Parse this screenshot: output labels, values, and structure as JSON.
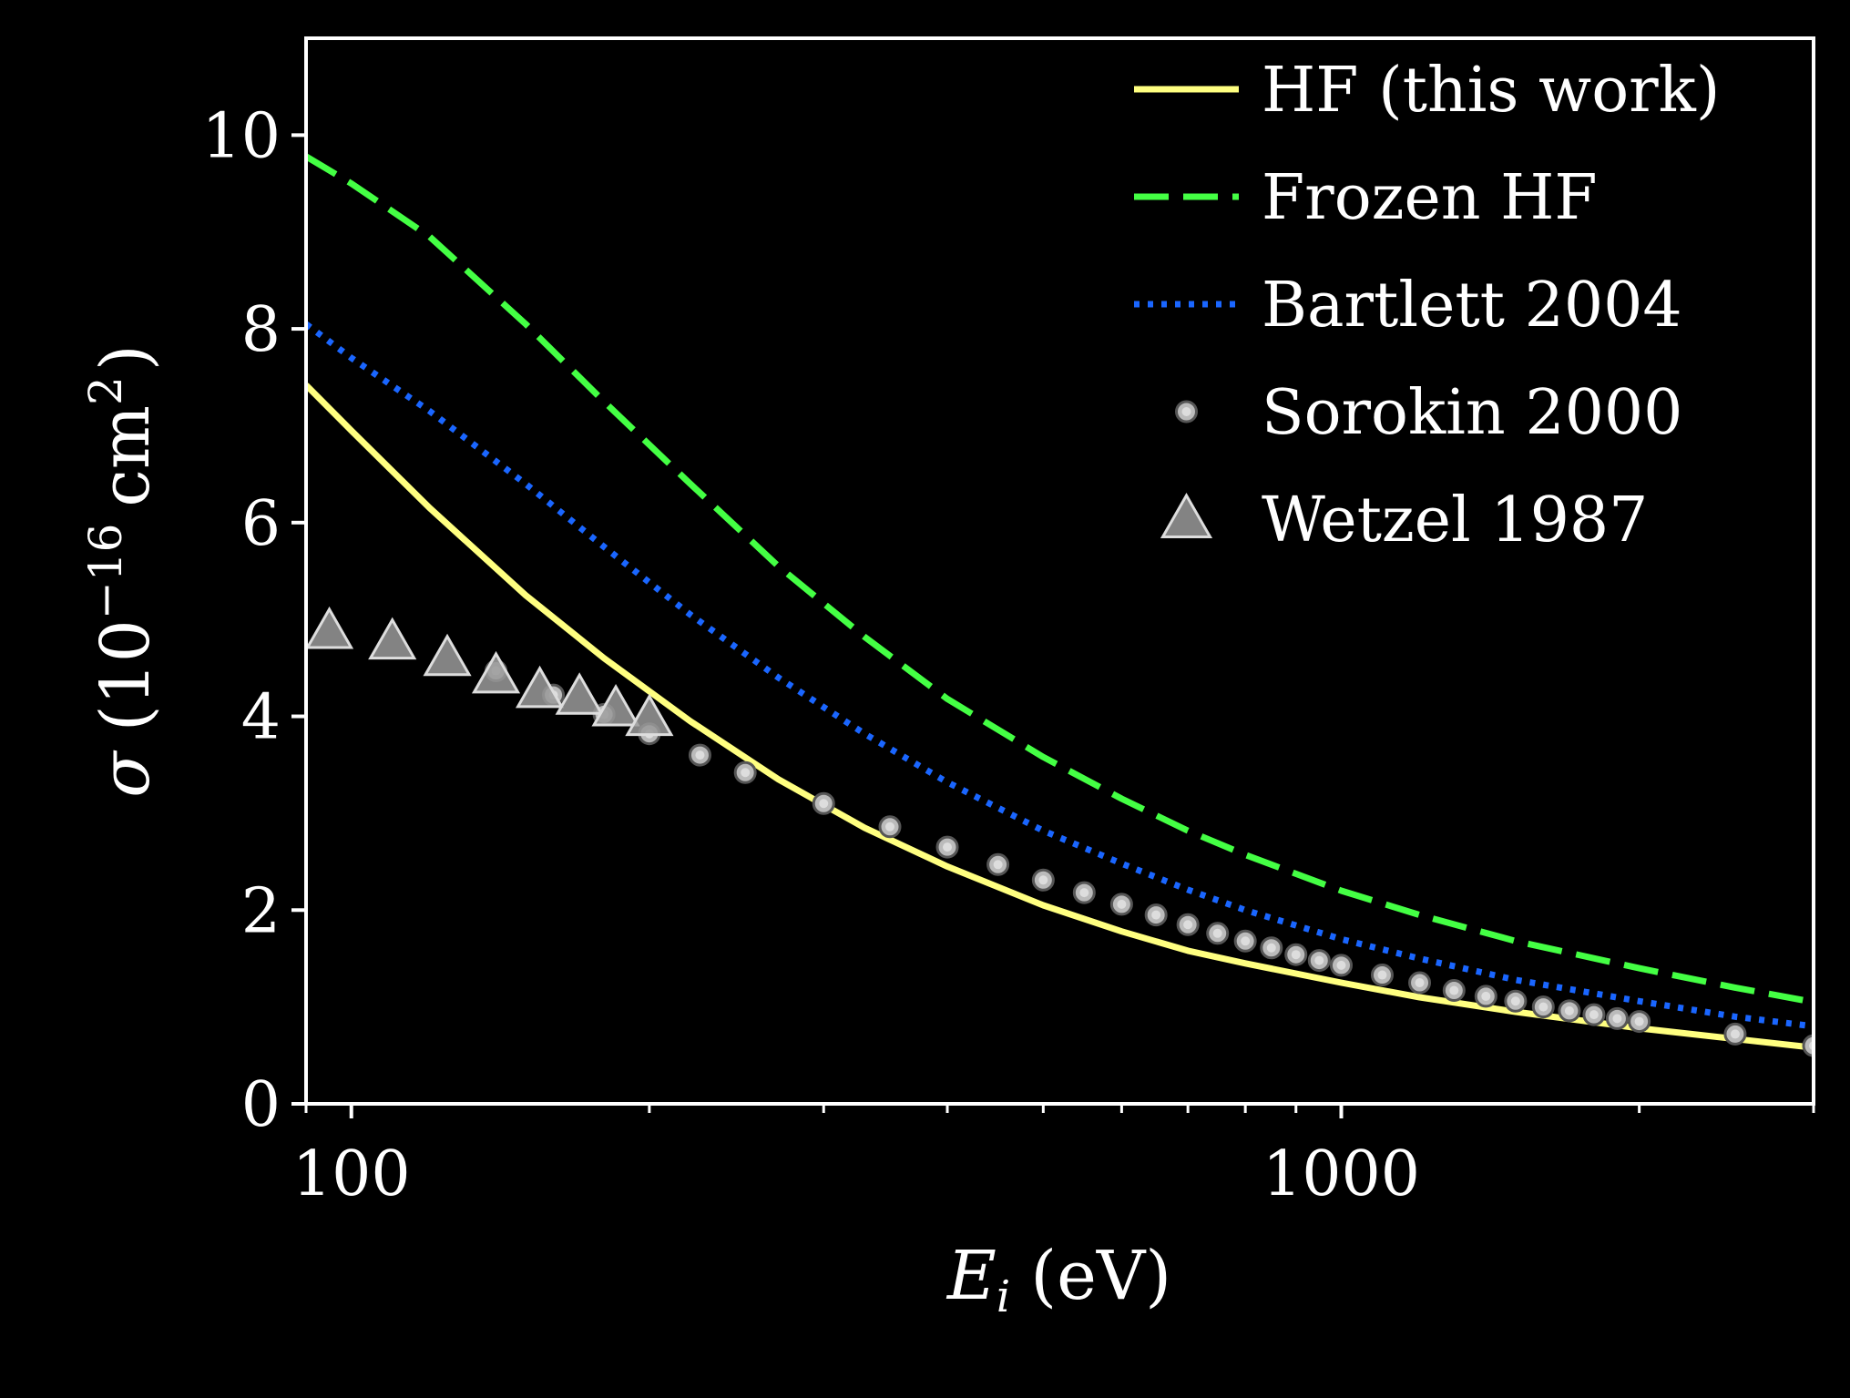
{
  "chart_data": {
    "type": "line",
    "xlabel": "E_i (eV)",
    "xlabel_main": "E",
    "xlabel_sub": "i",
    "xlabel_unit": "(eV)",
    "ylabel": "σ (10^−16 cm^2)",
    "ylabel_symbol": "σ",
    "ylabel_base": "(10",
    "ylabel_exp": "−16",
    "ylabel_unit": "cm",
    "ylabel_unit_exp": "2",
    "ylabel_close": ")",
    "x_scale": "log",
    "xlim": [
      90,
      3000
    ],
    "ylim": [
      0,
      11
    ],
    "x_tick_labels": [
      {
        "value": 100,
        "label": "100"
      },
      {
        "value": 1000,
        "label": "1000"
      }
    ],
    "y_tick_labels": [
      {
        "value": 0,
        "label": "0"
      },
      {
        "value": 2,
        "label": "2"
      },
      {
        "value": 4,
        "label": "4"
      },
      {
        "value": 6,
        "label": "6"
      },
      {
        "value": 8,
        "label": "8"
      },
      {
        "value": 10,
        "label": "10"
      }
    ],
    "legend_position": "top-right",
    "grid": false,
    "series": [
      {
        "name": "HF (this work)",
        "kind": "line",
        "style": "solid",
        "color": "#ffff80",
        "x": [
          90,
          100,
          120,
          150,
          180,
          220,
          270,
          330,
          400,
          500,
          600,
          700,
          800,
          1000,
          1200,
          1500,
          2000,
          2500,
          3000
        ],
        "y": [
          7.42,
          6.95,
          6.15,
          5.25,
          4.6,
          3.95,
          3.35,
          2.85,
          2.45,
          2.05,
          1.78,
          1.58,
          1.45,
          1.25,
          1.1,
          0.95,
          0.78,
          0.67,
          0.58
        ]
      },
      {
        "name": "Frozen HF",
        "kind": "line",
        "style": "dashed",
        "color": "#44ff44",
        "x": [
          90,
          100,
          120,
          150,
          180,
          220,
          270,
          330,
          400,
          500,
          600,
          700,
          800,
          1000,
          1200,
          1500,
          2000,
          2500,
          3000
        ],
        "y": [
          9.78,
          9.5,
          8.95,
          8.05,
          7.25,
          6.4,
          5.55,
          4.82,
          4.18,
          3.58,
          3.15,
          2.82,
          2.57,
          2.2,
          1.95,
          1.68,
          1.4,
          1.2,
          1.05
        ]
      },
      {
        "name": "Bartlett 2004",
        "kind": "line",
        "style": "dotted",
        "color": "#1a66ff",
        "x": [
          90,
          100,
          120,
          150,
          180,
          220,
          270,
          330,
          400,
          500,
          600,
          700,
          800,
          1000,
          1200,
          1500,
          2000,
          2500,
          3000
        ],
        "y": [
          8.05,
          7.7,
          7.15,
          6.4,
          5.75,
          5.05,
          4.4,
          3.82,
          3.32,
          2.82,
          2.48,
          2.21,
          2.0,
          1.7,
          1.5,
          1.28,
          1.06,
          0.9,
          0.8
        ]
      },
      {
        "name": "Sorokin 2000",
        "kind": "scatter",
        "marker": "circle",
        "color": "#bbbbbb",
        "x": [
          140,
          160,
          180,
          200,
          225,
          250,
          300,
          350,
          400,
          450,
          500,
          550,
          600,
          650,
          700,
          750,
          800,
          850,
          900,
          950,
          1000,
          1100,
          1200,
          1300,
          1400,
          1500,
          1600,
          1700,
          1800,
          1900,
          2000,
          2500,
          3000
        ],
        "y": [
          4.47,
          4.22,
          4.02,
          3.82,
          3.6,
          3.42,
          3.1,
          2.86,
          2.65,
          2.47,
          2.31,
          2.18,
          2.06,
          1.95,
          1.85,
          1.76,
          1.68,
          1.61,
          1.54,
          1.48,
          1.43,
          1.33,
          1.25,
          1.17,
          1.11,
          1.06,
          1.0,
          0.96,
          0.92,
          0.88,
          0.85,
          0.72,
          0.6
        ]
      },
      {
        "name": "Wetzel 1987",
        "kind": "scatter",
        "marker": "triangle",
        "color": "#9a9a9a",
        "x": [
          95,
          110,
          125,
          140,
          155,
          170,
          185,
          200
        ],
        "y": [
          4.88,
          4.77,
          4.6,
          4.42,
          4.27,
          4.2,
          4.08,
          3.98
        ]
      }
    ]
  }
}
